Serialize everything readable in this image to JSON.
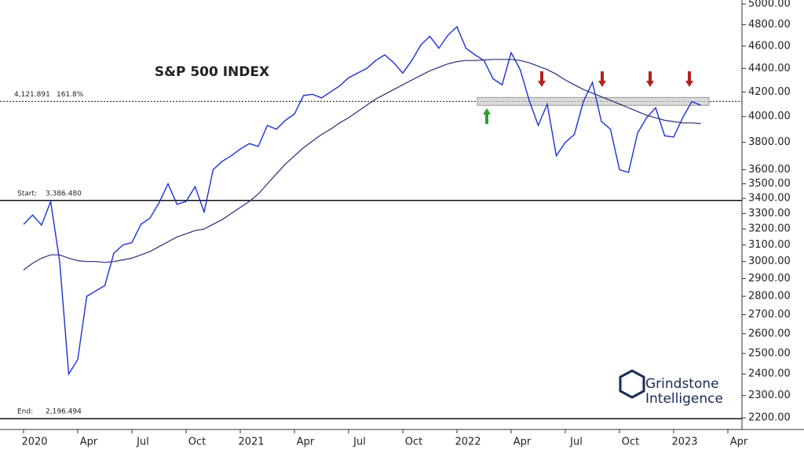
{
  "chart_data": {
    "type": "line",
    "title": "S&P 500 INDEX",
    "log_scale": true,
    "categories": [
      "2020",
      null,
      null,
      null,
      null,
      null,
      "Apr",
      null,
      null,
      null,
      null,
      null,
      "Jul",
      null,
      null,
      null,
      null,
      null,
      "Oct",
      null,
      null,
      null,
      null,
      null,
      "2021",
      null,
      null,
      null,
      null,
      null,
      "Apr",
      null,
      null,
      null,
      null,
      null,
      "Jul",
      null,
      null,
      null,
      null,
      null,
      "Oct",
      null,
      null,
      null,
      null,
      null,
      "2022",
      null,
      null,
      null,
      null,
      null,
      "Apr",
      null,
      null,
      null,
      null,
      null,
      "Jul",
      null,
      null,
      null,
      null,
      null,
      "Oct",
      null,
      null,
      null,
      null,
      null,
      "2023",
      null,
      null,
      null,
      null,
      null,
      "Apr",
      null
    ],
    "series": [
      {
        "color": "#1c2fd6",
        "values": [
          3230,
          3290,
          3225,
          3380,
          3000,
          2400,
          2470,
          2800,
          2830,
          2860,
          3050,
          3100,
          3115,
          3230,
          3270,
          3370,
          3500,
          3360,
          3380,
          3480,
          3310,
          3600,
          3660,
          3700,
          3750,
          3790,
          3770,
          3930,
          3900,
          3970,
          4020,
          4170,
          4180,
          4150,
          4200,
          4250,
          4320,
          4360,
          4400,
          4470,
          4520,
          4450,
          4360,
          4470,
          4610,
          4690,
          4580,
          4700,
          4780,
          4580,
          4520,
          4470,
          4310,
          4260,
          4540,
          4390,
          4130,
          3930,
          4100,
          3700,
          3800,
          3860,
          4120,
          4280,
          3960,
          3900,
          3600,
          3580,
          3870,
          3990,
          4070,
          3850,
          3840,
          3990,
          4120,
          4090,
          null,
          null,
          null,
          null
        ]
      },
      {
        "color": "#2b2b78",
        "values": [
          2950,
          2990,
          3020,
          3040,
          3040,
          3020,
          3005,
          3000,
          3000,
          2995,
          3000,
          3010,
          3020,
          3040,
          3060,
          3090,
          3120,
          3150,
          3170,
          3190,
          3200,
          3230,
          3260,
          3300,
          3340,
          3380,
          3430,
          3500,
          3570,
          3640,
          3700,
          3760,
          3810,
          3860,
          3900,
          3950,
          3990,
          4040,
          4090,
          4140,
          4180,
          4220,
          4260,
          4300,
          4340,
          4380,
          4410,
          4440,
          4460,
          4470,
          4470,
          4475,
          4480,
          4480,
          4480,
          4470,
          4450,
          4420,
          4390,
          4350,
          4300,
          4260,
          4220,
          4190,
          4160,
          4130,
          4100,
          4070,
          4040,
          4010,
          3990,
          3970,
          3960,
          3950,
          3950,
          3945,
          null,
          null,
          null,
          null
        ]
      }
    ],
    "ylim": [
      2150,
      5040
    ],
    "yticks": [
      {
        "value": 2200,
        "label": "2200.00"
      },
      {
        "value": 2300,
        "label": "2300.00"
      },
      {
        "value": 2400,
        "label": "2400.00"
      },
      {
        "value": 2500,
        "label": "2500.00"
      },
      {
        "value": 2600,
        "label": "2600.00"
      },
      {
        "value": 2700,
        "label": "2700.00"
      },
      {
        "value": 2800,
        "label": "2800.00"
      },
      {
        "value": 2900,
        "label": "2900.00"
      },
      {
        "value": 3000,
        "label": "3000.00"
      },
      {
        "value": 3100,
        "label": "3100.00"
      },
      {
        "value": 3200,
        "label": "3200.00"
      },
      {
        "value": 3300,
        "label": "3300.00"
      },
      {
        "value": 3400,
        "label": "3400.00"
      },
      {
        "value": 3500,
        "label": "3500.00"
      },
      {
        "value": 3600,
        "label": "3600.00"
      },
      {
        "value": 3800,
        "label": "3800.00"
      },
      {
        "value": 4000,
        "label": "4000.00"
      },
      {
        "value": 4200,
        "label": "4200.00"
      },
      {
        "value": 4400,
        "label": "4400.00"
      },
      {
        "value": 4600,
        "label": "4600.00"
      },
      {
        "value": 4800,
        "label": "4800.00"
      },
      {
        "value": 5000,
        "label": "5000.00"
      }
    ],
    "levels": [
      {
        "value": 4121.891,
        "label": "4,121.891",
        "ratio": "161.8%",
        "style": "dashed"
      },
      {
        "name": "Start:",
        "value": 3386.48,
        "label": "3,386.480",
        "style": "solid"
      },
      {
        "name": "End:",
        "value": 2196.494,
        "label": "2,196.494",
        "style": "solid"
      }
    ],
    "brand": [
      "Grindstone",
      "Intelligence"
    ]
  }
}
